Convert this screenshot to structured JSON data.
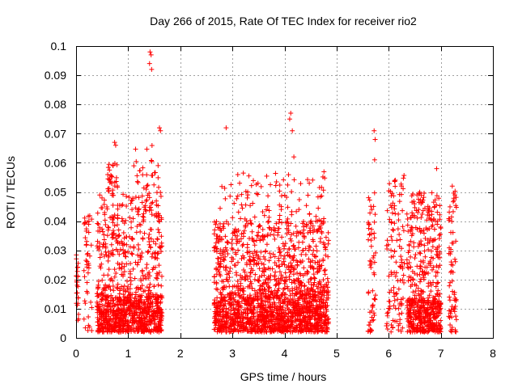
{
  "chart_data": {
    "type": "scatter",
    "title": "Day 266 of 2015, Rate Of TEC Index for receiver rio2",
    "xlabel": "GPS time / hours",
    "ylabel": "ROTI / TECUs",
    "xlim": [
      0,
      8
    ],
    "ylim": [
      0,
      0.1
    ],
    "x_ticks": [
      "0",
      "1",
      "2",
      "3",
      "4",
      "5",
      "6",
      "7",
      "8"
    ],
    "y_ticks": [
      "0",
      "0.01",
      "0.02",
      "0.03",
      "0.04",
      "0.05",
      "0.06",
      "0.07",
      "0.08",
      "0.09",
      "0.1"
    ],
    "grid": true,
    "marker": "plus",
    "series": [
      {
        "name": "rio2",
        "color": "#ff0000",
        "clusters": [
          {
            "x_range": [
              0.0,
              0.05
            ],
            "y_range": [
              0.002,
              0.03
            ],
            "count": 25
          },
          {
            "x_range": [
              0.15,
              0.3
            ],
            "y_range": [
              0.002,
              0.042
            ],
            "count": 45
          },
          {
            "x_range": [
              0.4,
              1.65
            ],
            "y_range": [
              0.002,
              0.014
            ],
            "count": 650
          },
          {
            "x_range": [
              0.4,
              1.65
            ],
            "y_range": [
              0.014,
              0.05
            ],
            "count": 380
          },
          {
            "x_range": [
              0.6,
              0.8
            ],
            "y_range": [
              0.05,
              0.061
            ],
            "count": 28
          },
          {
            "x_range": [
              1.1,
              1.6
            ],
            "y_range": [
              0.048,
              0.066
            ],
            "count": 30
          },
          {
            "x_range": [
              2.65,
              4.85
            ],
            "y_range": [
              0.002,
              0.015
            ],
            "count": 1100
          },
          {
            "x_range": [
              2.65,
              4.85
            ],
            "y_range": [
              0.015,
              0.04
            ],
            "count": 620
          },
          {
            "x_range": [
              2.75,
              4.8
            ],
            "y_range": [
              0.04,
              0.057
            ],
            "count": 95
          },
          {
            "x_range": [
              5.6,
              5.75
            ],
            "y_range": [
              0.002,
              0.05
            ],
            "count": 60
          },
          {
            "x_range": [
              5.95,
              6.3
            ],
            "y_range": [
              0.002,
              0.056
            ],
            "count": 120
          },
          {
            "x_range": [
              6.35,
              7.0
            ],
            "y_range": [
              0.002,
              0.013
            ],
            "count": 320
          },
          {
            "x_range": [
              6.35,
              7.0
            ],
            "y_range": [
              0.013,
              0.05
            ],
            "count": 230
          },
          {
            "x_range": [
              7.15,
              7.3
            ],
            "y_range": [
              0.002,
              0.053
            ],
            "count": 70
          }
        ],
        "outliers": [
          [
            1.42,
            0.098
          ],
          [
            1.44,
            0.097
          ],
          [
            1.41,
            0.094
          ],
          [
            1.45,
            0.092
          ],
          [
            1.6,
            0.072
          ],
          [
            1.62,
            0.071
          ],
          [
            0.74,
            0.067
          ],
          [
            0.76,
            0.066
          ],
          [
            2.88,
            0.072
          ],
          [
            4.12,
            0.077
          ],
          [
            4.1,
            0.075
          ],
          [
            4.15,
            0.071
          ],
          [
            4.18,
            0.062
          ],
          [
            5.72,
            0.071
          ],
          [
            5.74,
            0.068
          ],
          [
            5.73,
            0.061
          ],
          [
            6.92,
            0.058
          ],
          [
            7.22,
            0.052
          ]
        ]
      }
    ]
  }
}
